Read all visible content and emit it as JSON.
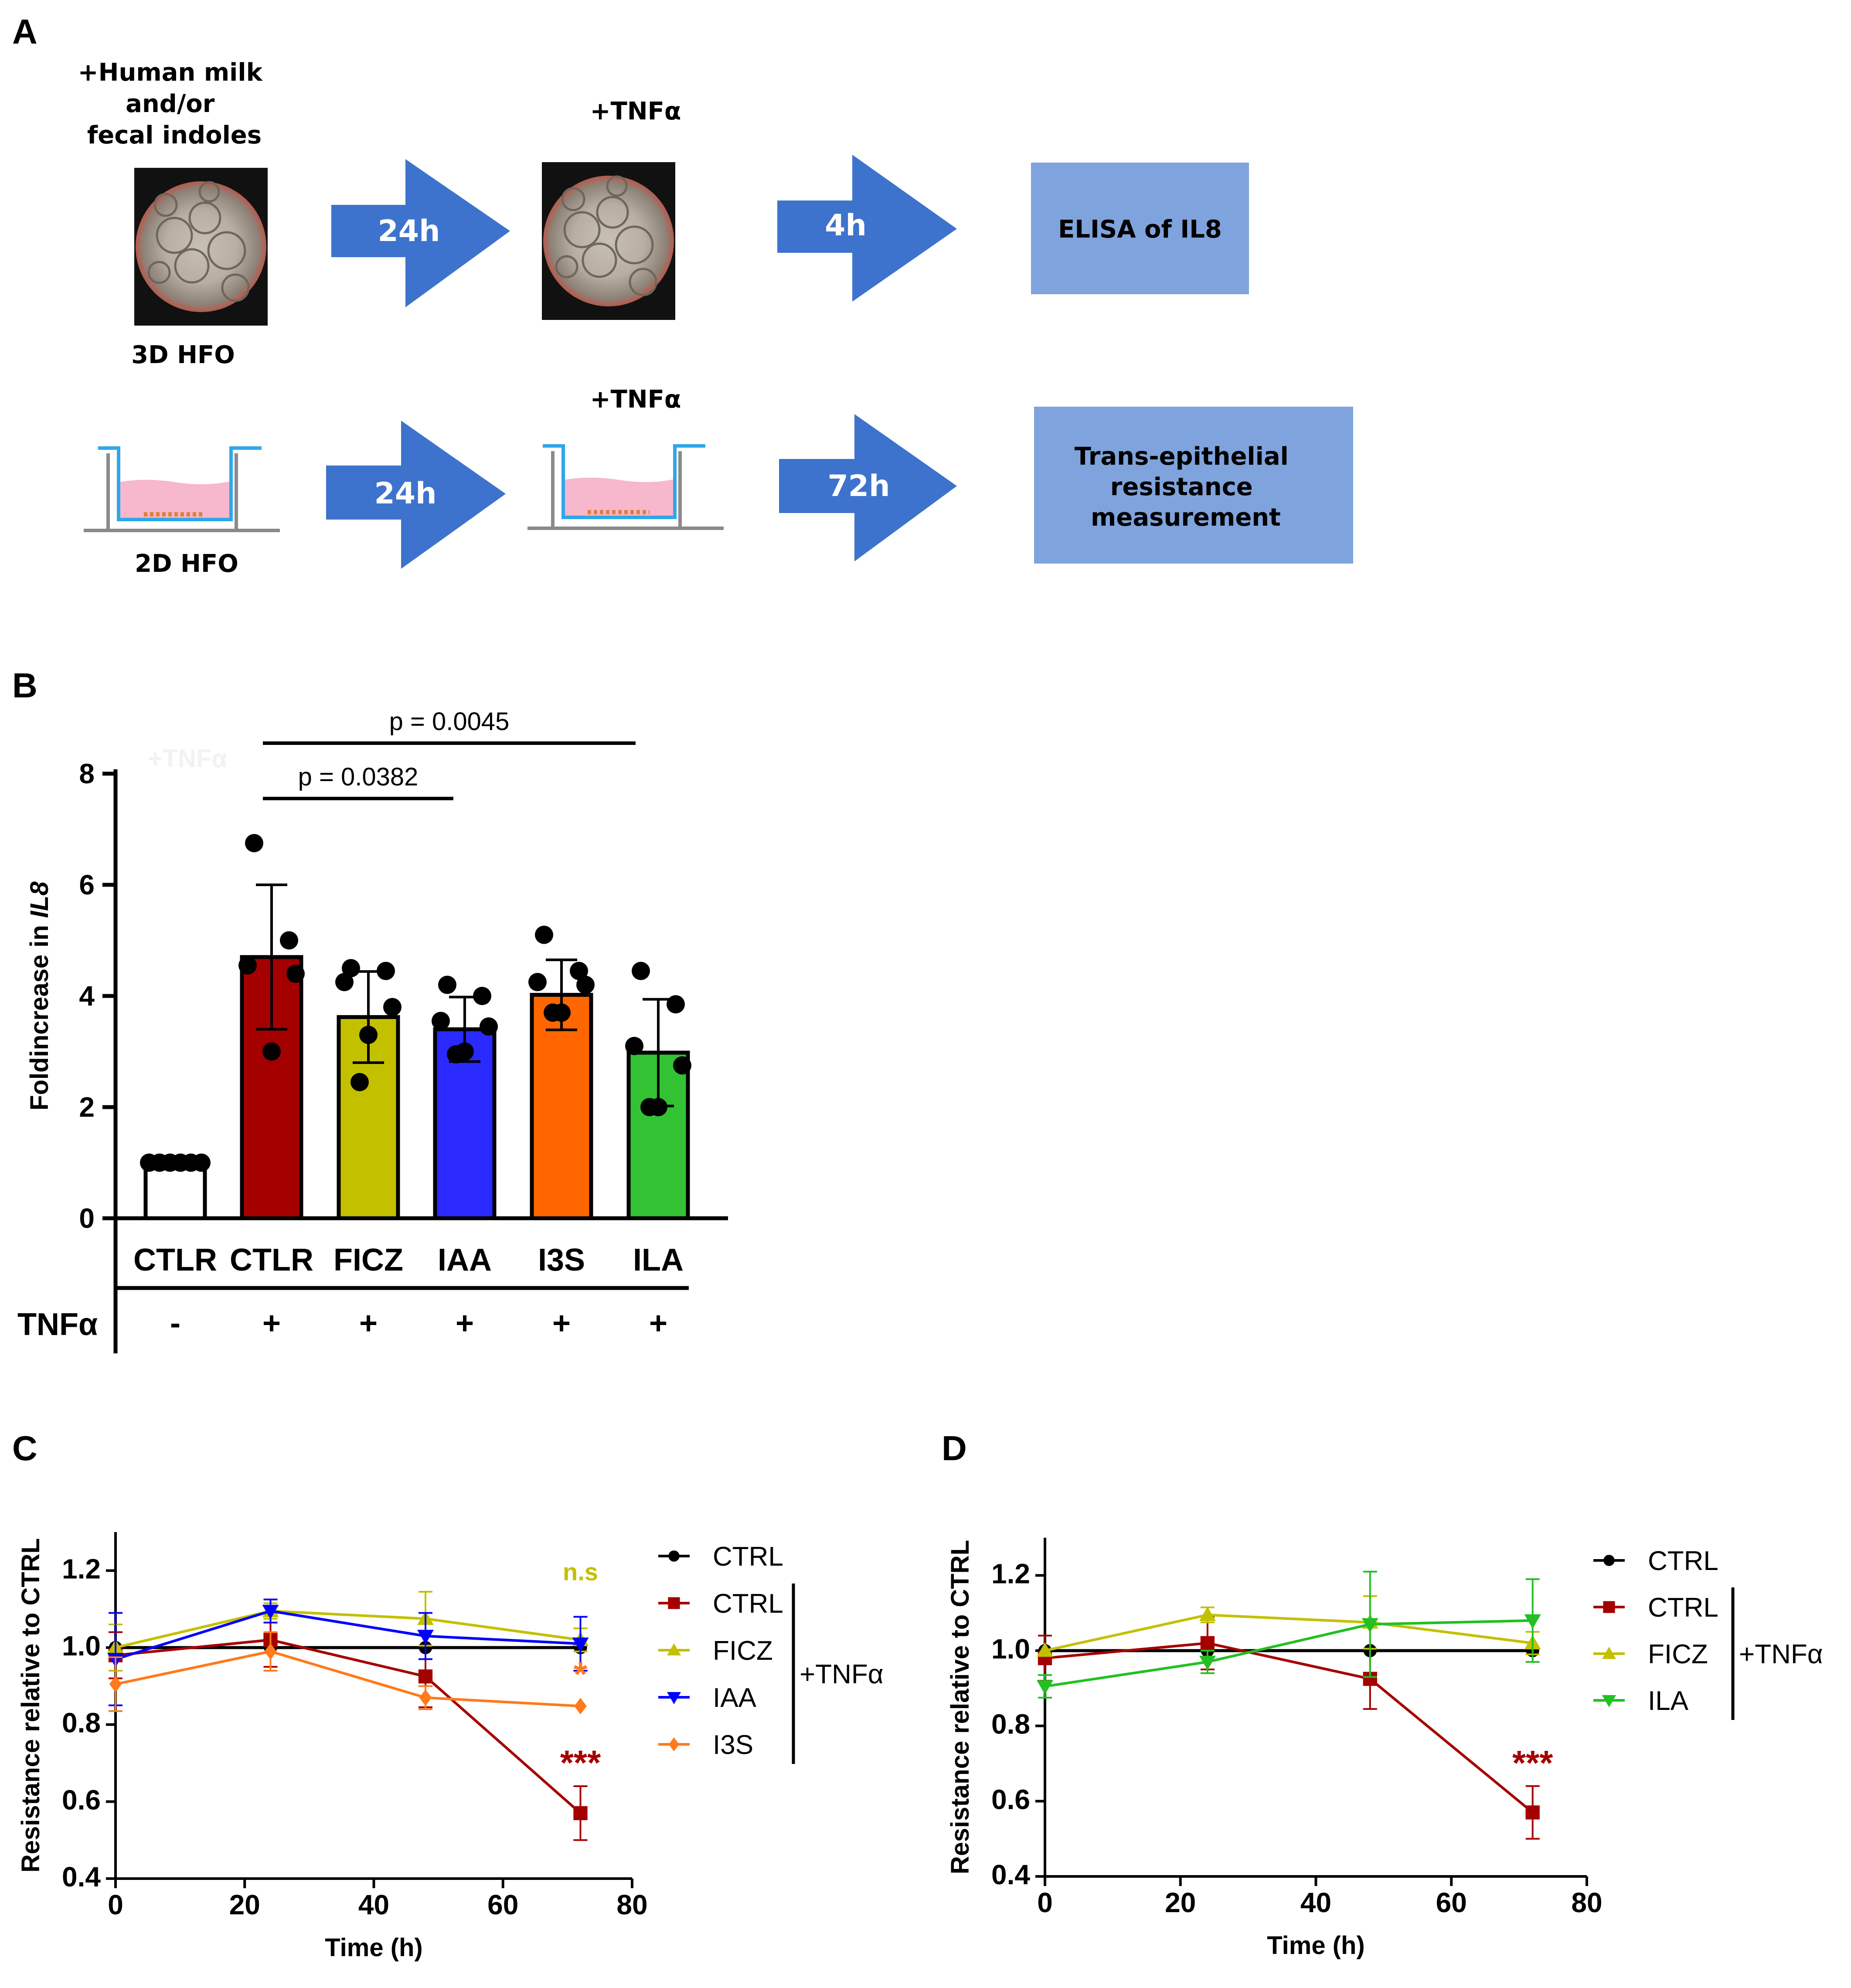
{
  "panels": {
    "a": "A",
    "b": "B",
    "c": "C",
    "d": "D"
  },
  "workflow": {
    "top_condition": "+Human milk\nand/or\nfecal indoles",
    "top_model": "3D HFO",
    "bottom_model": "2D HFO",
    "tnf_label_top": "+TNFα",
    "tnf_label_bottom": "+TNFα",
    "arrow1_top": "24h",
    "arrow2_top": "4h",
    "arrow1_bottom": "24h",
    "arrow2_bottom": "72h",
    "box_top": "ELISA of IL8",
    "box_bottom": "Trans-epithelial\nresistance\nmeasurement",
    "colors": {
      "arrow": "#3d73cc",
      "box": "#7fa3dd",
      "medium": "#f7b7cc",
      "insert": "#2fa7e8",
      "well": "#8a8a8a",
      "cells": "#e0803a"
    }
  },
  "chart_data": [
    {
      "id": "B",
      "type": "bar",
      "title": "",
      "ylabel_prefix": "Foldincrease in ",
      "ylabel_italic": "IL8",
      "xlabel": "",
      "ylim": [
        0,
        8
      ],
      "yticks": [
        0,
        2,
        4,
        6,
        8
      ],
      "categories": [
        "CTLR",
        "CTLR",
        "FICZ",
        "IAA",
        "I3S",
        "ILA"
      ],
      "tnf_row_label": "TNFα",
      "tnf": [
        "-",
        "+",
        "+",
        "+",
        "+",
        "+"
      ],
      "means": [
        1.0,
        4.7,
        3.62,
        3.4,
        4.02,
        2.98
      ],
      "sd": [
        0,
        1.3,
        0.82,
        0.58,
        0.63,
        0.96
      ],
      "colors": [
        "#ffffff",
        "#a50000",
        "#c3c000",
        "#2a2aff",
        "#ff6600",
        "#33c233"
      ],
      "points": [
        [
          1,
          1,
          1,
          1,
          1,
          1
        ],
        [
          6.75,
          5.0,
          4.55,
          4.4,
          3.0
        ],
        [
          4.5,
          4.45,
          4.25,
          3.8,
          3.3,
          2.45
        ],
        [
          4.2,
          4.0,
          3.55,
          3.45,
          3.0,
          2.95
        ],
        [
          5.1,
          4.45,
          4.25,
          4.2,
          3.7,
          3.7
        ],
        [
          4.45,
          3.85,
          3.1,
          2.75,
          2.0,
          2.0
        ]
      ],
      "comparisons": [
        {
          "from": 1,
          "to": 3,
          "label": "p = 0.0382"
        },
        {
          "from": 1,
          "to": 5,
          "label": "p = 0.0045"
        }
      ],
      "faint_text": "+TNFα"
    },
    {
      "id": "C",
      "type": "line",
      "xlabel": "Time (h)",
      "ylabel": "Resistance relative to CTRL",
      "xlim": [
        0,
        80
      ],
      "ylim": [
        0.4,
        1.3
      ],
      "xticks": [
        0,
        20,
        40,
        60,
        80
      ],
      "yticks": [
        0.4,
        0.6,
        0.8,
        1.0,
        1.2
      ],
      "ytick_labels": [
        "0.4",
        "0.6",
        "0.8",
        "1.0",
        "1.2"
      ],
      "x": [
        0,
        24,
        48,
        72
      ],
      "series": [
        {
          "name": "CTRL",
          "color": "#000000",
          "marker": "circle",
          "values": [
            1.0,
            1.0,
            1.0,
            1.0
          ],
          "err": [
            0,
            0,
            0,
            0
          ]
        },
        {
          "name": "CTRL",
          "color": "#a50000",
          "marker": "square",
          "values": [
            0.98,
            1.02,
            0.925,
            0.57
          ],
          "err": [
            0.06,
            0.07,
            0.08,
            0.07
          ]
        },
        {
          "name": "FICZ",
          "color": "#c3c000",
          "marker": "triangle-up",
          "values": [
            1.0,
            1.095,
            1.075,
            1.02
          ],
          "err": [
            0.06,
            0.02,
            0.07,
            0.03
          ]
        },
        {
          "name": "IAA",
          "color": "#0000ff",
          "marker": "triangle-down",
          "values": [
            0.97,
            1.095,
            1.03,
            1.01
          ],
          "err": [
            0.12,
            0.03,
            0.06,
            0.07
          ]
        },
        {
          "name": "I3S",
          "color": "#ff7a1a",
          "marker": "diamond",
          "values": [
            0.905,
            0.99,
            0.87,
            0.848
          ],
          "err": [
            0.07,
            0.05,
            0.03,
            0.0
          ]
        }
      ],
      "tnf_group_label": "+TNFα",
      "annotations": [
        {
          "text": "n.s",
          "x": 72,
          "y": 1.175,
          "color": "#c3c000"
        },
        {
          "text": "*",
          "x": 72,
          "y": 0.9,
          "color": "#ff7a1a"
        },
        {
          "text": "***",
          "x": 72,
          "y": 0.67,
          "color": "#a50000"
        }
      ]
    },
    {
      "id": "D",
      "type": "line",
      "xlabel": "Time (h)",
      "ylabel": "Resistance relative to CTRL",
      "xlim": [
        0,
        80
      ],
      "ylim": [
        0.4,
        1.3
      ],
      "xticks": [
        0,
        20,
        40,
        60,
        80
      ],
      "yticks": [
        0.4,
        0.6,
        0.8,
        1.0,
        1.2
      ],
      "ytick_labels": [
        "0.4",
        "0.6",
        "0.8",
        "1.0",
        "1.2"
      ],
      "x": [
        0,
        24,
        48,
        72
      ],
      "series": [
        {
          "name": "CTRL",
          "color": "#000000",
          "marker": "circle",
          "values": [
            1.0,
            1.0,
            1.0,
            1.0
          ],
          "err": [
            0,
            0,
            0,
            0
          ]
        },
        {
          "name": "CTRL",
          "color": "#a50000",
          "marker": "square",
          "values": [
            0.98,
            1.02,
            0.925,
            0.57
          ],
          "err": [
            0.06,
            0.07,
            0.08,
            0.07
          ]
        },
        {
          "name": "FICZ",
          "color": "#c3c000",
          "marker": "triangle-up",
          "values": [
            1.0,
            1.095,
            1.075,
            1.02
          ],
          "err": [
            0.0,
            0.02,
            0.07,
            0.03
          ]
        },
        {
          "name": "ILA",
          "color": "#22c022",
          "marker": "triangle-down",
          "values": [
            0.905,
            0.97,
            1.07,
            1.08
          ],
          "err": [
            0.03,
            0.03,
            0.14,
            0.11
          ]
        }
      ],
      "tnf_group_label": "+TNFα",
      "annotations": [
        {
          "text": "***",
          "x": 72,
          "y": 0.67,
          "color": "#a50000"
        }
      ]
    }
  ]
}
